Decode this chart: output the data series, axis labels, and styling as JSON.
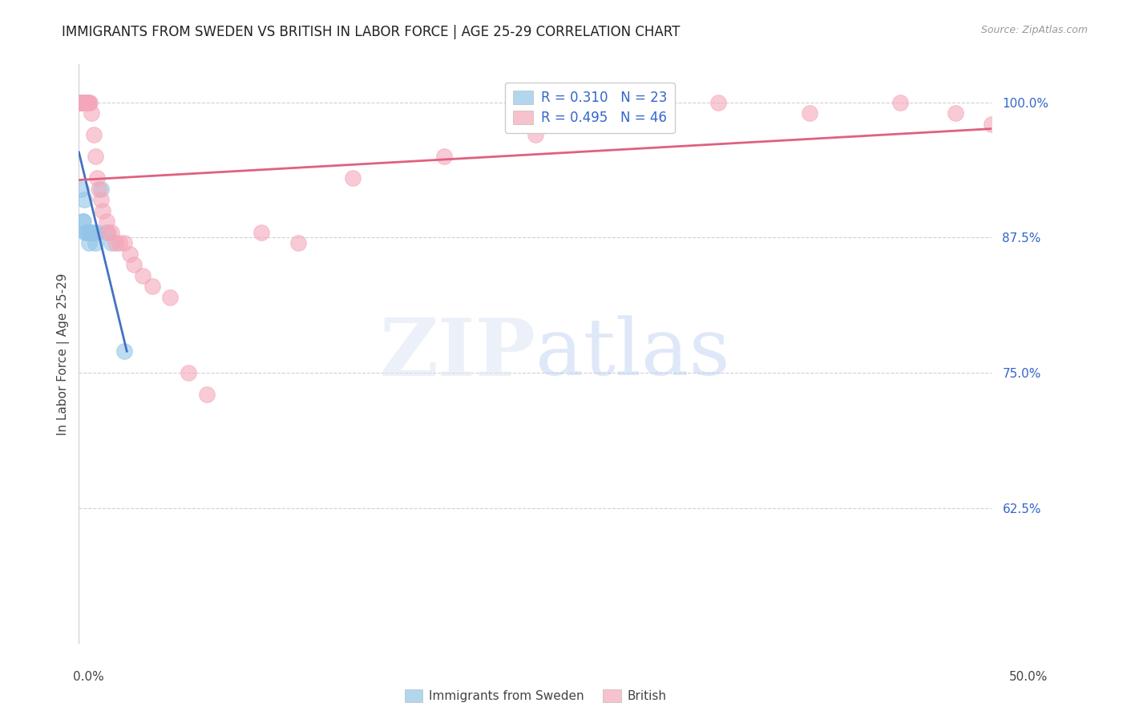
{
  "title": "IMMIGRANTS FROM SWEDEN VS BRITISH IN LABOR FORCE | AGE 25-29 CORRELATION CHART",
  "source": "Source: ZipAtlas.com",
  "ylabel": "In Labor Force | Age 25-29",
  "xlim": [
    0.0,
    50.0
  ],
  "ylim": [
    50.0,
    103.5
  ],
  "yticks": [
    62.5,
    75.0,
    87.5,
    100.0
  ],
  "ytick_labels": [
    "62.5%",
    "75.0%",
    "87.5%",
    "100.0%"
  ],
  "xtick_left": "0.0%",
  "xtick_right": "50.0%",
  "legend_R_sweden": "0.310",
  "legend_N_sweden": "23",
  "legend_R_british": "0.495",
  "legend_N_british": "46",
  "sweden_color": "#92c5e8",
  "british_color": "#f4a7b9",
  "sweden_line_color": "#4472c4",
  "british_line_color": "#e06080",
  "sweden_label": "Immigrants from Sweden",
  "british_label": "British",
  "sweden_x": [
    0.05,
    0.06,
    0.07,
    0.08,
    0.09,
    0.1,
    0.11,
    0.2,
    0.25,
    0.3,
    0.35,
    0.4,
    0.5,
    0.55,
    0.6,
    0.7,
    0.8,
    0.9,
    1.0,
    1.5,
    1.8,
    2.5,
    1.2
  ],
  "sweden_y": [
    100,
    100,
    100,
    100,
    100,
    100,
    92,
    89,
    89,
    91,
    88,
    88,
    88,
    87,
    88,
    88,
    88,
    87,
    88,
    88,
    87,
    77,
    92
  ],
  "british_x": [
    0.08,
    0.1,
    0.12,
    0.15,
    0.2,
    0.22,
    0.25,
    0.28,
    0.3,
    0.35,
    0.4,
    0.45,
    0.5,
    0.55,
    0.6,
    0.7,
    0.8,
    0.9,
    1.0,
    1.1,
    1.2,
    1.3,
    1.5,
    1.6,
    1.8,
    2.0,
    2.2,
    2.5,
    2.8,
    3.0,
    3.5,
    4.0,
    5.0,
    6.0,
    7.0,
    10.0,
    15.0,
    20.0,
    25.0,
    30.0,
    35.0,
    40.0,
    45.0,
    48.0,
    50.0,
    12.0
  ],
  "british_y": [
    100,
    100,
    100,
    100,
    100,
    100,
    100,
    100,
    100,
    100,
    100,
    100,
    100,
    100,
    100,
    99,
    97,
    95,
    93,
    92,
    91,
    90,
    89,
    88,
    88,
    87,
    87,
    87,
    86,
    85,
    84,
    83,
    82,
    75,
    73,
    88,
    93,
    95,
    97,
    99,
    100,
    99,
    100,
    99,
    98,
    87
  ]
}
